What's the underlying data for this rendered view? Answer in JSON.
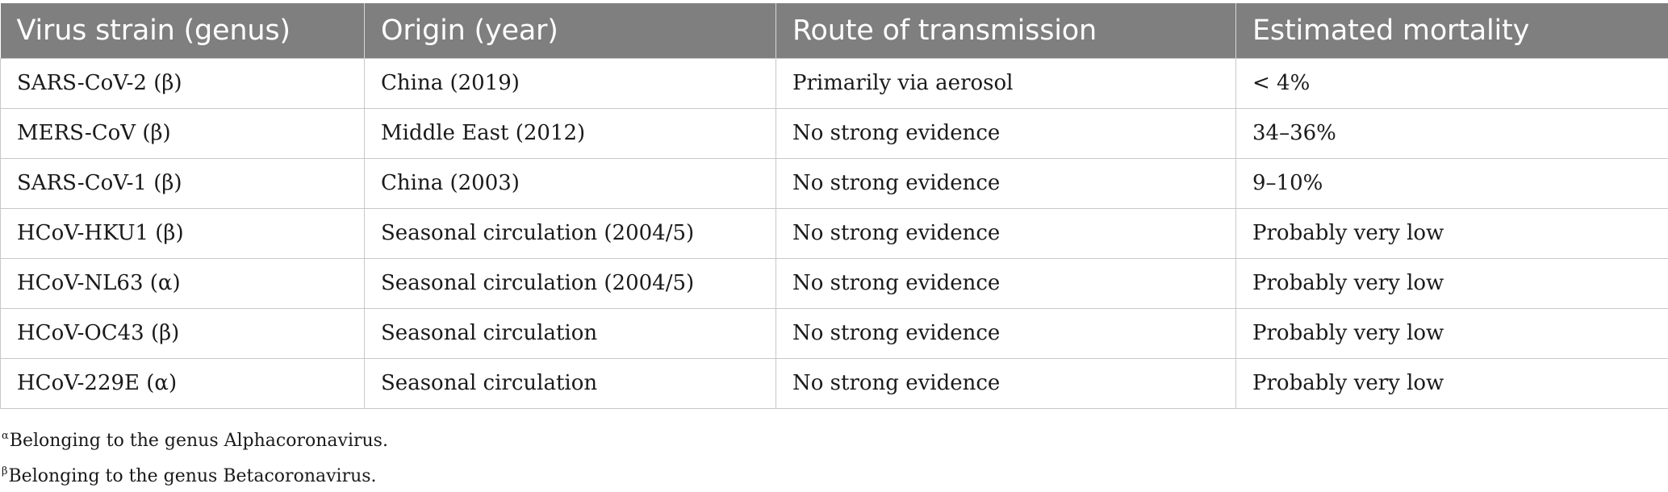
{
  "table": {
    "headers": [
      "Virus strain (genus)",
      "Origin (year)",
      "Route of transmission",
      "Estimated mortality"
    ],
    "rows": [
      [
        "SARS-CoV-2 (β)",
        "China (2019)",
        "Primarily via aerosol",
        "< 4%"
      ],
      [
        "MERS-CoV (β)",
        "Middle East (2012)",
        "No strong evidence",
        "34–36%"
      ],
      [
        "SARS-CoV-1 (β)",
        "China (2003)",
        "No strong evidence",
        "9–10%"
      ],
      [
        "HCoV-HKU1 (β)",
        "Seasonal circulation (2004/5)",
        "No strong evidence",
        "Probably very low"
      ],
      [
        "HCoV-NL63 (α)",
        "Seasonal circulation (2004/5)",
        "No strong evidence",
        "Probably very low"
      ],
      [
        "HCoV-OC43 (β)",
        "Seasonal circulation",
        "No strong evidence",
        "Probably very low"
      ],
      [
        "HCoV-229E (α)",
        "Seasonal circulation",
        "No strong evidence",
        "Probably very low"
      ]
    ]
  },
  "footnotes": [
    {
      "marker": "α",
      "text": "Belonging to the genus Alphacoronavirus."
    },
    {
      "marker": "β",
      "text": "Belonging to the genus Betacoronavirus."
    }
  ]
}
